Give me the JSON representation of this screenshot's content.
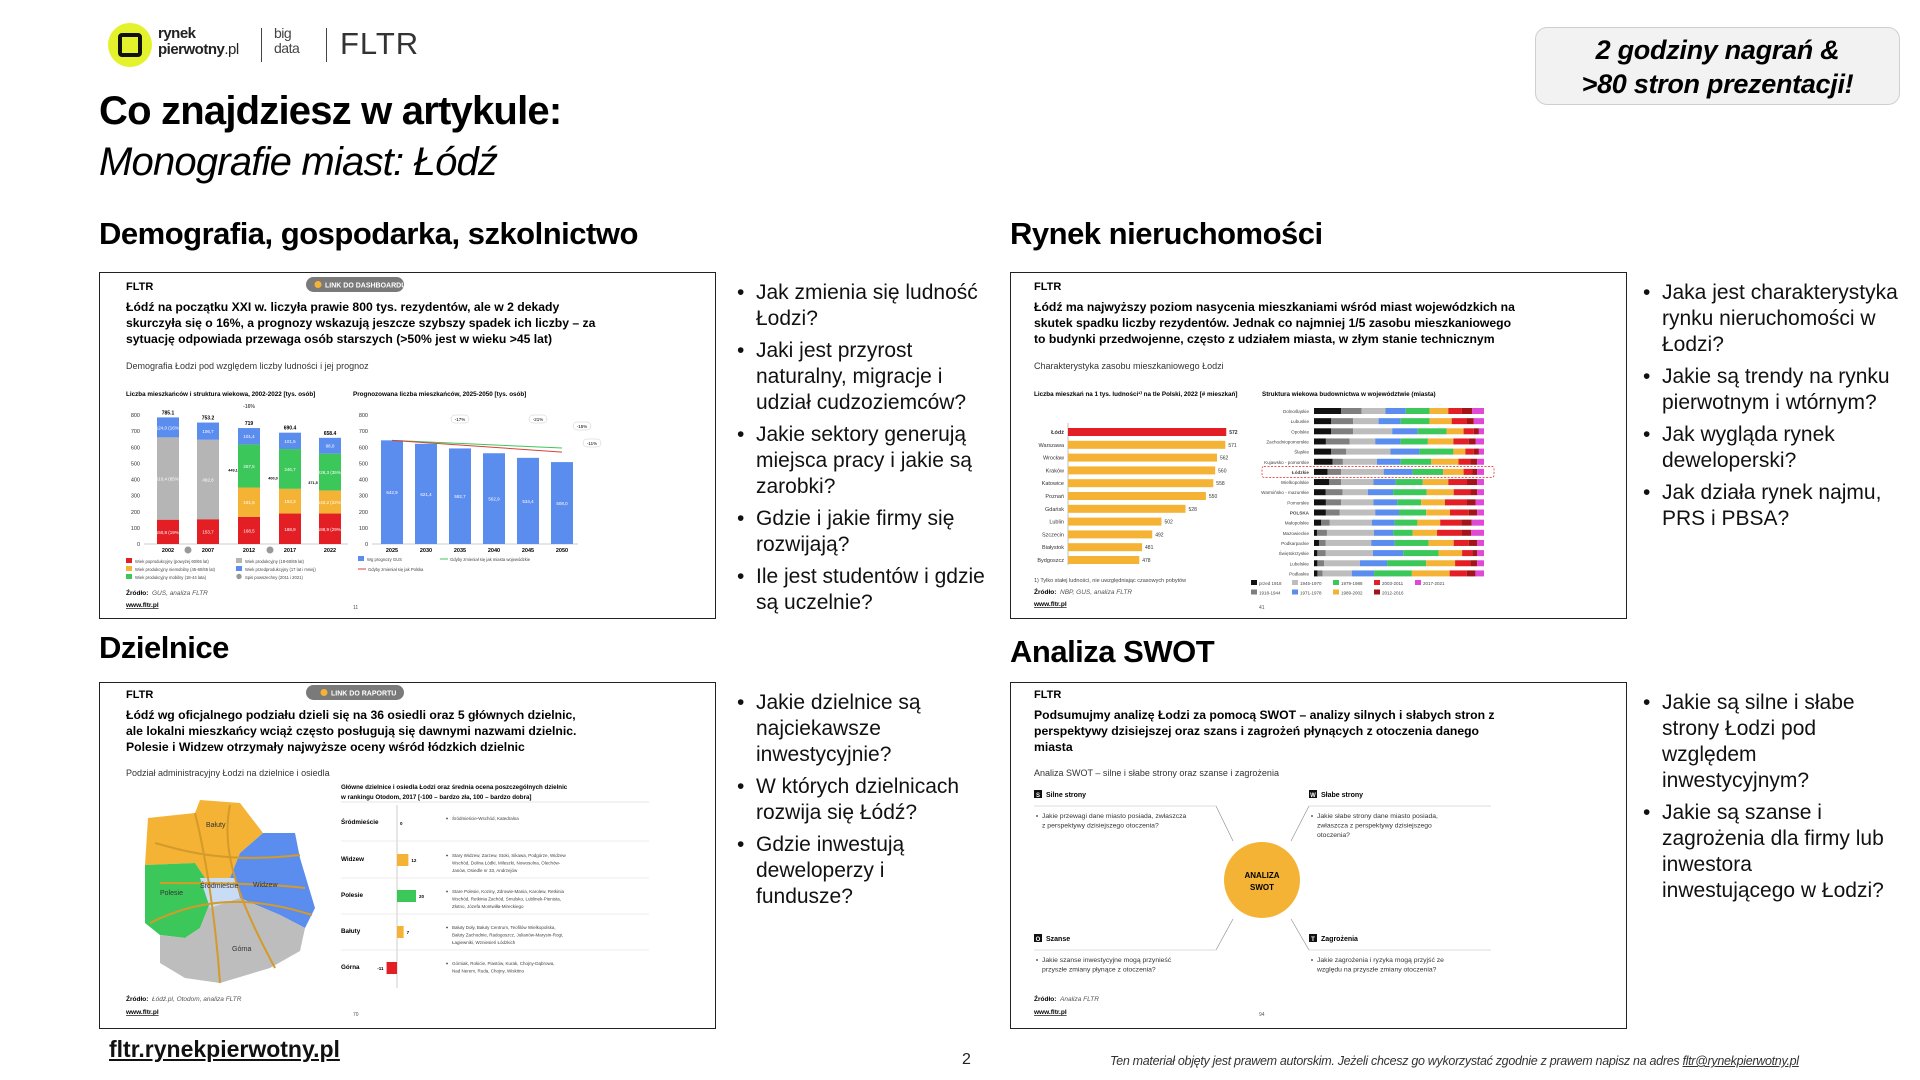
{
  "header": {
    "logo_line1": "rynek",
    "logo_line2": "pierwotny",
    "logo_line2_suffix": ".pl",
    "bigdata_line1": "big",
    "bigdata_line2": "data",
    "fltr": "FLTR",
    "title": "Co znajdziesz w artykule:",
    "subtitle": "Monografie miast: Łódź",
    "badge_line1": "2 godziny nagrań &",
    "badge_line2": ">80 stron prezentacji!",
    "brand_color": "#e3f22b"
  },
  "sections": {
    "demography": {
      "heading": "Demografia, gospodarka, szkolnictwo",
      "questions": [
        "Jak zmienia się ludność Łodzi?",
        "Jaki jest przyrost naturalny, migracje i udział cudzoziemców?",
        "Jakie sektory generują miejsca pracy i jakie są zarobki?",
        "Gdzie i jakie firmy się rozwijają?",
        "Ile jest studentów i gdzie są uczelnie?"
      ],
      "slide": {
        "brand": "FLTR",
        "pill": "LINK DO DASHBOARDU",
        "title_lines": [
          "Łódź na początku XXI w. liczyła prawie 800 tys. rezydentów, ale w 2 dekady",
          "skurczyła się o 16%, a prognozy wskazują jeszcze szybszy spadek ich liczby – za",
          "sytuację odpowiada przewaga osób starszych (>50% jest w wieku >45 lat)"
        ],
        "subtitle": "Demografia Łodzi pod względem liczby ludności i jej prognoz",
        "source_label": "Źródło:",
        "source": "GUS, analiza FLTR",
        "www": "www.fltr.pl",
        "page": "11"
      }
    },
    "real_estate": {
      "heading": "Rynek nieruchomości",
      "questions": [
        "Jaka jest charakterystyka rynku nieruchomości w Łodzi?",
        "Jakie są trendy na rynku pierwotnym i wtórnym?",
        "Jak wygląda rynek deweloperski?",
        "Jak działa rynek najmu, PRS i PBSA?"
      ],
      "slide": {
        "brand": "FLTR",
        "title_lines": [
          "Łódź ma najwyższy poziom nasycenia mieszkaniami wśród miast wojewódzkich na",
          "skutek spadku liczby rezydentów. Jednak co najmniej 1/5 zasobu mieszkaniowego",
          "to budynki przedwojenne, często z udziałem miasta, w złym stanie technicznym"
        ],
        "subtitle": "Charakterystyka zasobu mieszkaniowego Łodzi",
        "footnote": "1) Tylko stałej ludności, nie uwzględniając czasowych pobytów",
        "source_label": "Źródło:",
        "source": "NBP, GUS, analiza FLTR",
        "www": "www.fltr.pl",
        "page": "41"
      }
    },
    "districts": {
      "heading": "Dzielnice",
      "questions": [
        "Jakie dzielnice są najciekawsze inwestycyjnie?",
        "W których dzielnicach rozwija się Łódź?",
        "Gdzie inwestują deweloperzy i fundusze?"
      ],
      "slide": {
        "brand": "FLTR",
        "pill": "LINK DO RAPORTU",
        "title_lines": [
          "Łódź wg oficjalnego podziału dzieli się na 36 osiedli oraz 5 głównych dzielnic,",
          "ale lokalni mieszkańcy wciąż często posługują się dawnymi nazwami dzielnic.",
          "Polesie i Widzew otrzymały najwyższe oceny wśród łódzkich dzielnic"
        ],
        "subtitle": "Podział administracyjny Łodzi na dzielnice i osiedla",
        "map_labels": [
          "Bałuty",
          "Polesie",
          "Śródmieście",
          "Widzew",
          "Górna"
        ],
        "source_label": "Źródło:",
        "source": "Łódź.pl, Otodom, analiza FLTR",
        "www": "www.fltr.pl",
        "page": "70"
      }
    },
    "swot": {
      "heading": "Analiza SWOT",
      "questions": [
        "Jakie są silne i słabe strony Łodzi pod względem inwestycyjnym?",
        "Jakie są szanse i zagrożenia dla firmy lub inwestora inwestującego w Łodzi?"
      ],
      "slide": {
        "brand": "FLTR",
        "title_lines": [
          "Podsumujmy analizę Łodzi za pomocą SWOT – analizy silnych i słabych stron z",
          "perspektywy dzisiejszej oraz szans i zagrożeń płynących z otoczenia danego",
          "miasta"
        ],
        "subtitle": "Analiza SWOT – silne i słabe strony oraz szanse i zagrożenia",
        "center_line1": "ANALIZA",
        "center_line2": "SWOT",
        "quadrants": [
          {
            "letter": "S",
            "label": "Silne strony",
            "text_lines": [
              "Jakie przewagi dane miasto posiada, zwłaszcza",
              "z perspektywy dzisiejszego otoczenia?"
            ]
          },
          {
            "letter": "W",
            "label": "Słabe strony",
            "text_lines": [
              "Jakie słabe strony dane miasto posiada,",
              "zwłaszcza z perspektywy dzisiejszego",
              "otoczenia?"
            ]
          },
          {
            "letter": "O",
            "label": "Szanse",
            "text_lines": [
              "Jakie szanse inwestycyjne mogą przynieść",
              "przyszłe zmiany płynące z otoczenia?"
            ]
          },
          {
            "letter": "T",
            "label": "Zagrożenia",
            "text_lines": [
              "Jakie zagrożenia i ryzyka mogą przyjść ze",
              "względu na przyszłe zmiany otoczenia?"
            ]
          }
        ],
        "source_label": "Źródło:",
        "source": "Analiza FLTR",
        "www": "www.fltr.pl",
        "page": "94"
      }
    }
  },
  "footer": {
    "link": "fltr.rynekpierwotny.pl",
    "page_number": "2",
    "copyright": "Ten materiał objęty jest prawem autorskim. Jeżeli chcesz go wykorzystać zgodnie z prawem napisz na adres ",
    "email": "fltr@rynekpierwotny.pl"
  },
  "chart_data": [
    {
      "type": "bar",
      "stacked": true,
      "title": "Liczba mieszkańców i struktura wiekowa, 2002-2022 [tys. osób]",
      "categories": [
        "2002",
        "2007",
        "2012",
        "2017",
        "2022"
      ],
      "totals": [
        785.1,
        753.2,
        719.0,
        690.4,
        658.4
      ],
      "ylim": [
        0,
        800
      ],
      "yticks": [
        0,
        100,
        200,
        300,
        400,
        500,
        600,
        700,
        800
      ],
      "annotation": "-16%",
      "bracket_values": [
        "449,1",
        "400,0",
        "371,5"
      ],
      "series": [
        {
          "name": "Wiek poprodukcyjny (powyżej 60/65 lat)",
          "color": "#e31e24",
          "values": [
            150.8,
            153.7,
            168.5,
            188.9,
            188.9
          ],
          "labels": [
            "150,8 (19%)",
            "153,7",
            "168,5",
            "188,9",
            "188,9 (29%)"
          ]
        },
        {
          "name": "Wiek produkcyjny (18-60/65 lat)",
          "color": "#b5b5b5",
          "values": [
            510.4,
            492.8,
            0,
            0,
            0
          ],
          "labels": [
            "510,4 (65%)",
            "492,8",
            "",
            "",
            ""
          ]
        },
        {
          "name": "Wiek produkcyjny niemobilny (45-60/65 lat)",
          "color": "#f5b335",
          "values": [
            0,
            0,
            181.6,
            153.3,
            143.2
          ],
          "labels": [
            "",
            "",
            "181,6",
            "153,3",
            "143,2 (22%)"
          ]
        },
        {
          "name": "Wiek produkcyjny mobilny (18-44 lata)",
          "color": "#3cc75a",
          "values": [
            0,
            0,
            267.5,
            246.7,
            228.3
          ],
          "labels": [
            "",
            "",
            "267,5",
            "246,7",
            "228,3 (35%)"
          ]
        },
        {
          "name": "Wiek przedprodukcyjny (17 lat i mniej)",
          "color": "#5b8def",
          "values": [
            124.0,
            106.7,
            101.4,
            101.5,
            98.0
          ],
          "labels": [
            "124,0 (16%)",
            "106,7",
            "101,4",
            "101,5",
            "98,0"
          ]
        }
      ],
      "extra_legend": "Spis powszechny (2011 i 2021)"
    },
    {
      "type": "bar",
      "title": "Prognozowana liczba mieszkańców, 2025-2050 [tys. osób]",
      "categories": [
        "2025",
        "2030",
        "2035",
        "2040",
        "2045",
        "2050"
      ],
      "values": [
        642.9,
        621.4,
        592.7,
        562.9,
        534.4,
        508.0
      ],
      "labels": [
        "642,9",
        "621,4",
        "592,7",
        "562,9",
        "534,4",
        "508,0"
      ],
      "ylim": [
        0,
        800
      ],
      "yticks": [
        0,
        100,
        200,
        300,
        400,
        500,
        600,
        700,
        800
      ],
      "series_name": "Wg prognozy GUS",
      "color": "#5b8def",
      "lines": [
        {
          "name": "Gdyby zmieniał się jak miasta wojewódzkie",
          "color": "#3cc75a",
          "start": 642.9,
          "end": 595
        },
        {
          "name": "Gdyby zmieniał się jak Polska",
          "color": "#d8403a",
          "start": 642.9,
          "end": 570
        }
      ],
      "annotations": [
        "-17%",
        "-21%",
        "-15%",
        "-11%"
      ]
    },
    {
      "type": "bar",
      "orientation": "horizontal",
      "title": "Liczba mieszkań na 1 tys. ludności¹⁾ na tle Polski, 2022 [# mieszkań]",
      "categories": [
        "Łódź",
        "Warszawa",
        "Wrocław",
        "Kraków",
        "Katowice",
        "Poznań",
        "Gdańsk",
        "Lublin",
        "Szczecin",
        "Białystok",
        "Bydgoszcz"
      ],
      "values": [
        572,
        571,
        562,
        560,
        558,
        550,
        528,
        502,
        492,
        481,
        478
      ],
      "highlight": "Łódź",
      "colors": {
        "highlight": "#e31e24",
        "default": "#f5b335"
      }
    },
    {
      "type": "bar",
      "orientation": "horizontal",
      "stacked": true,
      "percent": true,
      "title": "Struktura wiekowa budownictwa w województwie (miasta)",
      "legend": [
        "przed 1918",
        "1918-1944",
        "1945-1970",
        "1971-1978",
        "1979-1988",
        "1989-2002",
        "2003-2011",
        "2012-2016",
        "2017-2021"
      ],
      "legend_colors": [
        "#111111",
        "#7f7f7f",
        "#bdbdbd",
        "#5b8def",
        "#3cc75a",
        "#f5b335",
        "#e31e24",
        "#a3141a",
        "#e048d8"
      ],
      "highlight": "Łódzkie",
      "rows": [
        {
          "name": "Dolnośląskie",
          "values": [
            16,
            12,
            14,
            12,
            14,
            11,
            8,
            6,
            7
          ]
        },
        {
          "name": "Lubuskie",
          "values": [
            10,
            13,
            15,
            13,
            17,
            13,
            9,
            4,
            6
          ]
        },
        {
          "name": "Opolskie",
          "values": [
            10,
            13,
            23,
            15,
            17,
            10,
            6,
            3,
            3
          ]
        },
        {
          "name": "Zachodniopomorskie",
          "values": [
            7,
            14,
            15,
            15,
            16,
            15,
            9,
            4,
            5
          ]
        },
        {
          "name": "Śląskie",
          "values": [
            10,
            9,
            26,
            17,
            20,
            7,
            5,
            3,
            3
          ]
        },
        {
          "name": "Kujawsko - pomorskie",
          "values": [
            11,
            6,
            20,
            14,
            18,
            16,
            7,
            4,
            4
          ]
        },
        {
          "name": "Łódzkie",
          "values": [
            8,
            8,
            25,
            17,
            18,
            12,
            5,
            3,
            4
          ]
        },
        {
          "name": "Wielkopolskie",
          "values": [
            9,
            7,
            19,
            13,
            16,
            15,
            11,
            6,
            4
          ]
        },
        {
          "name": "Warmińsko - mazurskie",
          "values": [
            7,
            10,
            15,
            15,
            20,
            16,
            10,
            4,
            4
          ]
        },
        {
          "name": "Pomorskie",
          "values": [
            7,
            9,
            19,
            14,
            14,
            14,
            13,
            5,
            5
          ]
        },
        {
          "name": "POLSKA",
          "values": [
            7,
            8,
            21,
            14,
            16,
            14,
            11,
            5,
            4
          ]
        },
        {
          "name": "Małopolskie",
          "values": [
            4,
            5,
            24,
            13,
            13,
            13,
            12,
            6,
            7
          ]
        },
        {
          "name": "Mazowieckie",
          "values": [
            2,
            6,
            29,
            12,
            12,
            15,
            15,
            6,
            8
          ]
        },
        {
          "name": "Podkarpackie",
          "values": [
            3,
            4,
            27,
            14,
            20,
            15,
            9,
            5,
            4
          ]
        },
        {
          "name": "Świętokrzyskie",
          "values": [
            2,
            5,
            28,
            18,
            21,
            14,
            6,
            3,
            4
          ]
        },
        {
          "name": "Lubelskie",
          "values": [
            2,
            4,
            21,
            16,
            23,
            17,
            9,
            4,
            4
          ]
        },
        {
          "name": "Podlaskie",
          "values": [
            2,
            3,
            17,
            13,
            22,
            22,
            10,
            5,
            5
          ]
        }
      ]
    },
    {
      "type": "bar",
      "orientation": "horizontal",
      "title_lines": [
        "Główne dzielnice i osiedla Łodzi oraz średnia ocena poszczególnych dzielnic",
        "w rankingu Otodom, 2017 [-100 – bardzo zła, 100 – bardzo dobra]"
      ],
      "categories": [
        "Śródmieście",
        "Widzew",
        "Polesie",
        "Bałuty",
        "Górna"
      ],
      "values": [
        0,
        12,
        20,
        7,
        -11
      ],
      "colors": [
        "#f5b335",
        "#f5b335",
        "#3cc75a",
        "#f5b335",
        "#e31e24"
      ],
      "details": [
        [
          "Śródmieście-Wschód, Katedralna"
        ],
        [
          "Stary Widzew, Zarzew, Stoki, Sikawa, Podgórze, Widzew",
          "Wschód, Dolina Łódki, Mileszki, Nowosolna, Olechów-",
          "Janów, Osiedle nr 33, Andrzejów"
        ],
        [
          "Stare Polesie, Koziny, Zdrowie-Mania, Karolew, Retkinia",
          "Wschód, Retkinia Zachód, Smulsko, Lublinek-Pienista,",
          "Złotno, Józefa Montwiłła-Mireckiego"
        ],
        [
          "Bałuty Doły, Bałuty Centrum, Teofilów Wielkopolska,",
          "Bałuty Zachodnie, Radogoszcz, Julianów-Marysin-Rogi,",
          "Łagiewniki, Wzniesień Łódzkich"
        ],
        [
          "Górniak, Rokicie, Piastów, Kurak, Chojny-Dąbrowa,",
          "Nad Nerem, Ruda, Chojny, Wiskitno"
        ]
      ]
    }
  ]
}
